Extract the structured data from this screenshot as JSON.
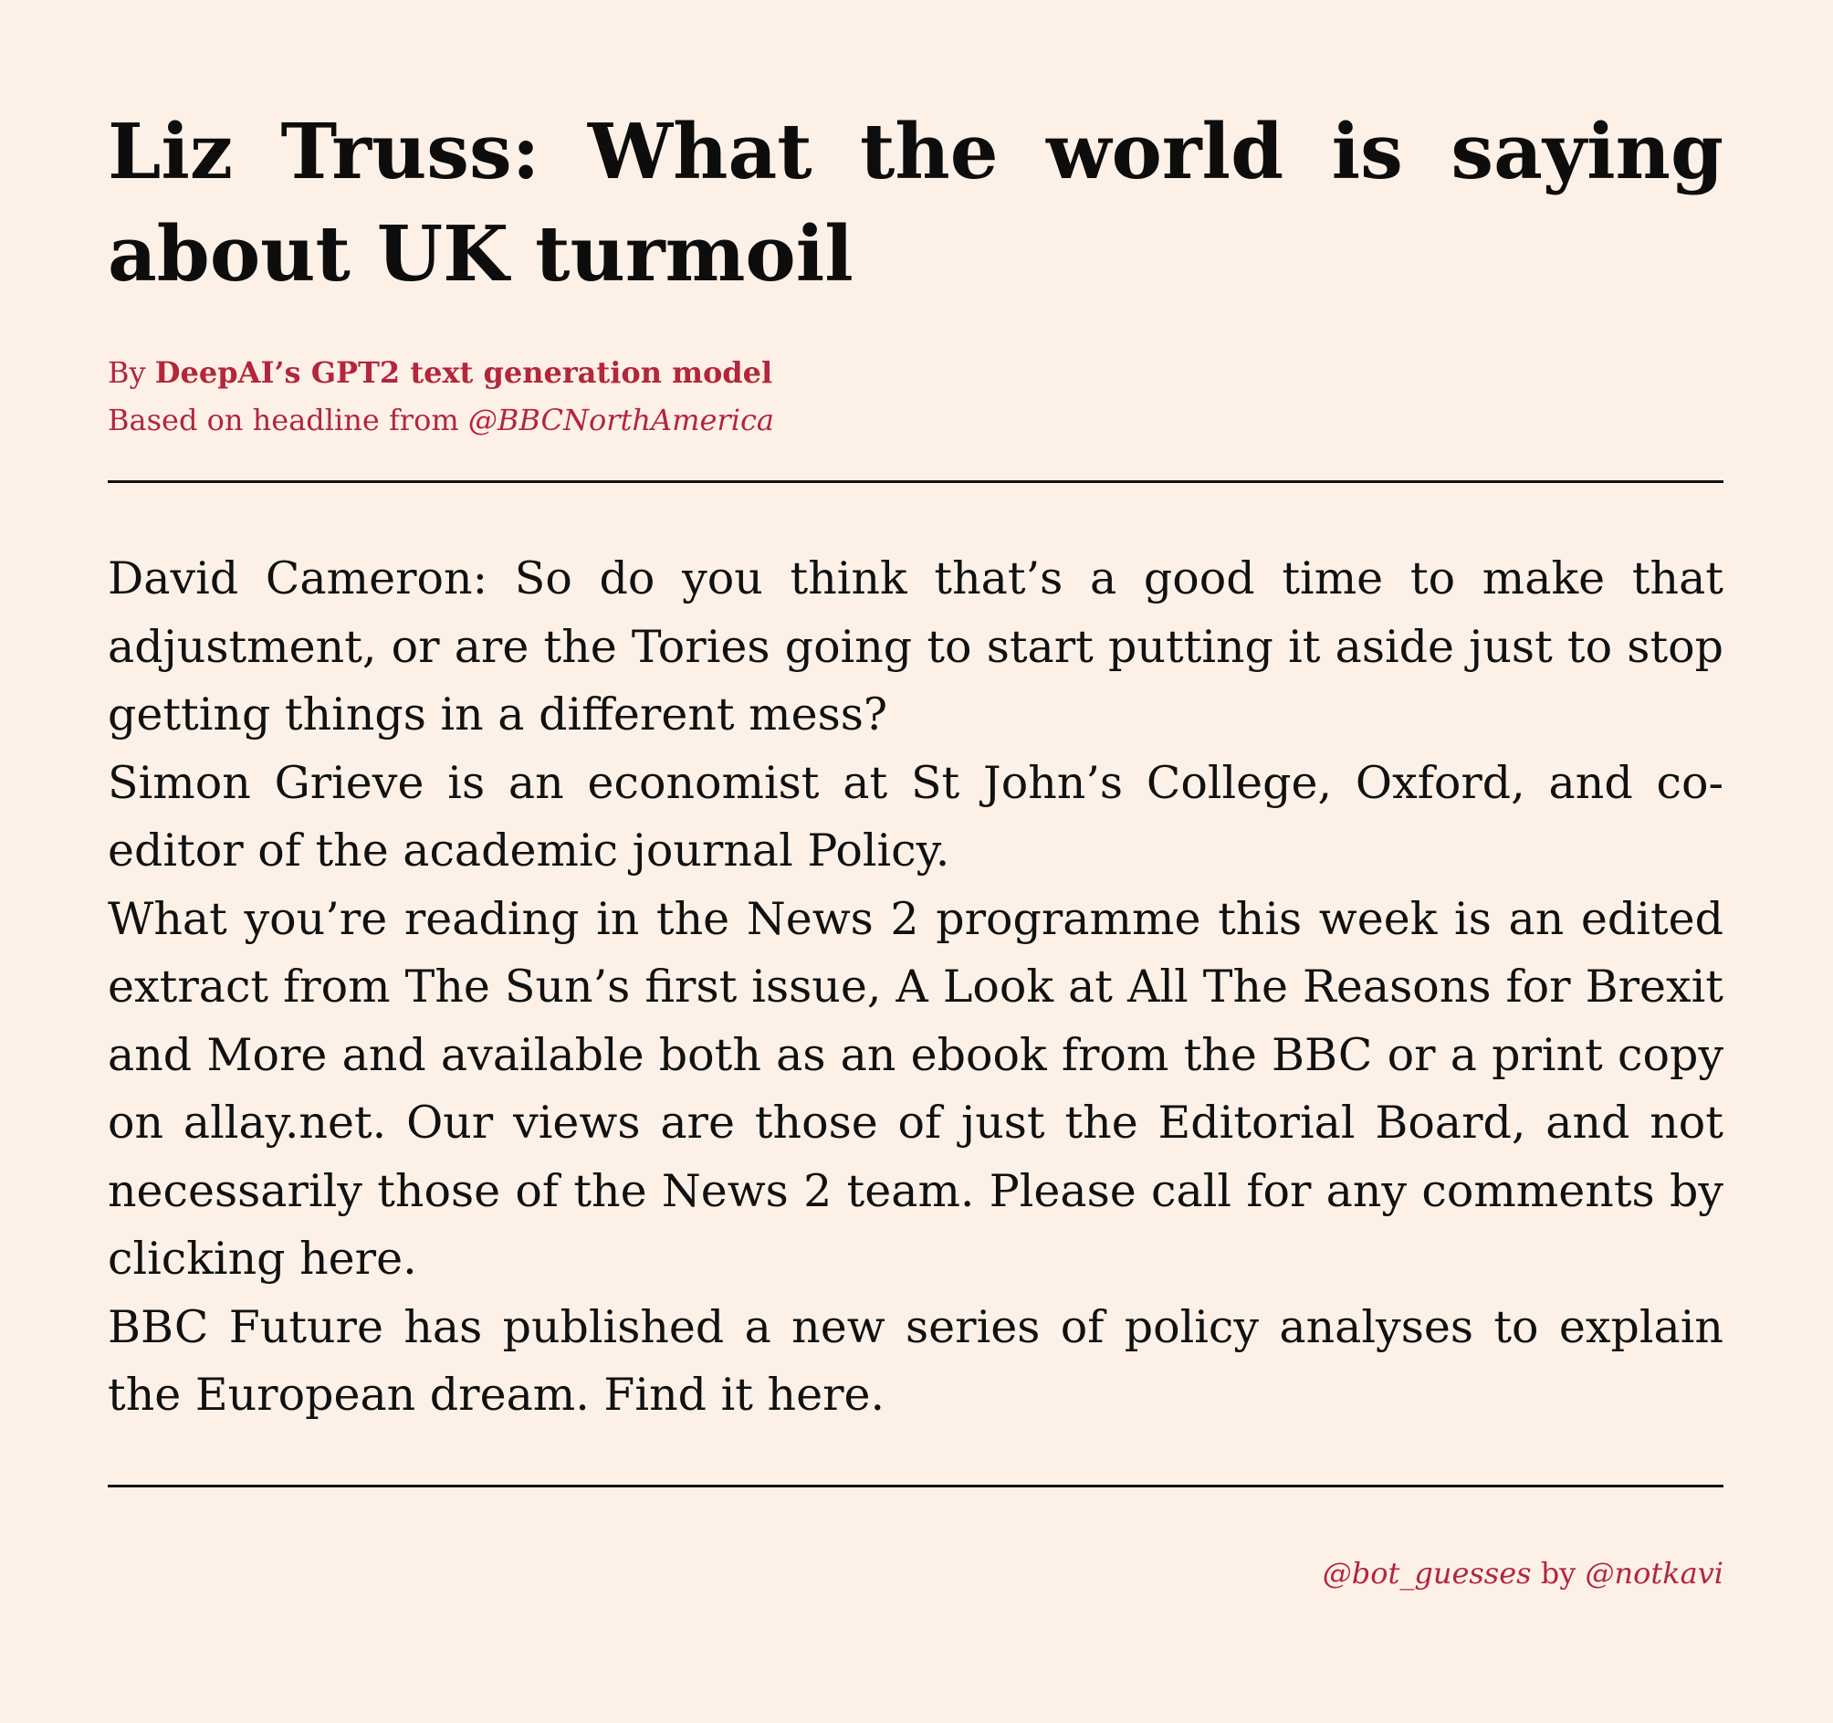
{
  "article": {
    "headline": "Liz Truss: What the world is saying about UK turmoil",
    "byline": {
      "prefix": "By ",
      "author": "DeepAI’s GPT2 text generation model",
      "source_prefix": "Based on headline from ",
      "source_handle": "@BBCNorthAmerica"
    },
    "paragraphs": [
      "David Cameron: So do you think that’s a good time to make that adjustment, or are the Tories going to start putting it aside just to stop getting things in a different mess?",
      "Simon Grieve is an economist at St John’s College, Oxford, and co-editor of the academic journal Policy.",
      "What you’re reading in the News 2 programme this week is an edited extract from The Sun’s first issue, A Look at All The Reasons for Brexit and More and available both as an ebook from the BBC or a print copy on allay.net. Our views are those of just the Editorial Board, and not necessarily those of the News 2 team. Please call for any comments by clicking here.",
      "BBC Future has published a new series of policy analyses to explain the European dream. Find it here."
    ]
  },
  "footer": {
    "bot_handle": "@bot_guesses",
    "by_text": " by ",
    "author_handle": "@notkavi"
  },
  "colors": {
    "background": "#fdf1e7",
    "accent": "#b3263c",
    "text": "#111111"
  }
}
